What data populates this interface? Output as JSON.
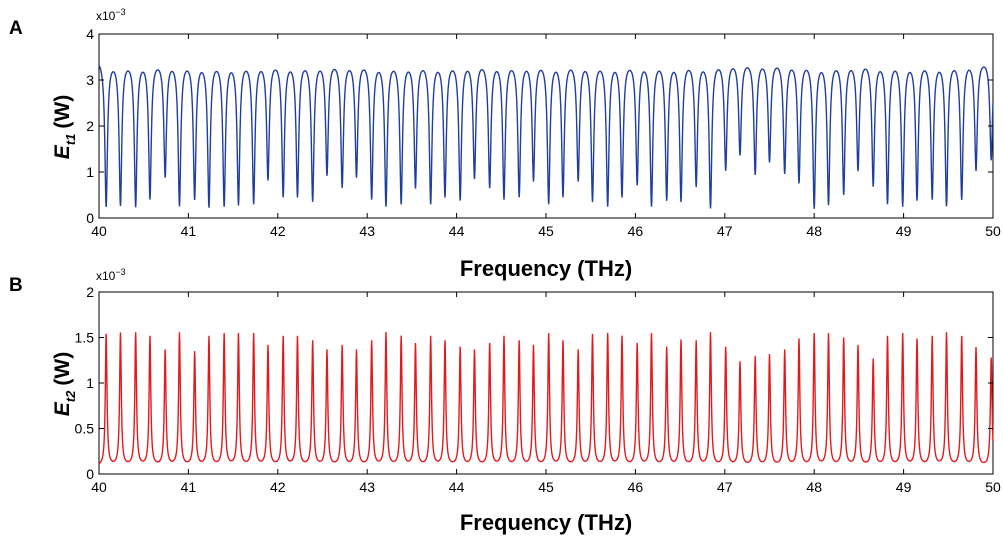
{
  "chart_data": [
    {
      "panel": "A",
      "type": "line",
      "xlabel": "Frequency (THz)",
      "ylabel_main": "E",
      "ylabel_sub": "t1",
      "ylabel_unit": "(W)",
      "scale_exponent_label": "x10",
      "scale_exponent_power": "−3",
      "xlim": [
        40,
        50
      ],
      "ylim": [
        0,
        4
      ],
      "xticks": [
        "40",
        "41",
        "42",
        "43",
        "44",
        "45",
        "46",
        "47",
        "48",
        "49",
        "50"
      ],
      "yticks": [
        "0",
        "1",
        "2",
        "3",
        "4"
      ],
      "series_color": "#1f3f9e",
      "baseline": 3.5,
      "dips": [
        {
          "x": 40.08,
          "y": 0.3
        },
        {
          "x": 40.24,
          "y": 0.35
        },
        {
          "x": 40.41,
          "y": 0.33
        },
        {
          "x": 40.57,
          "y": 0.5
        },
        {
          "x": 40.74,
          "y": 0.98
        },
        {
          "x": 40.9,
          "y": 0.35
        },
        {
          "x": 41.07,
          "y": 0.5
        },
        {
          "x": 41.23,
          "y": 0.33
        },
        {
          "x": 41.4,
          "y": 0.35
        },
        {
          "x": 41.56,
          "y": 0.38
        },
        {
          "x": 41.73,
          "y": 0.4
        },
        {
          "x": 41.89,
          "y": 0.92
        },
        {
          "x": 42.06,
          "y": 0.55
        },
        {
          "x": 42.22,
          "y": 0.55
        },
        {
          "x": 42.39,
          "y": 0.45
        },
        {
          "x": 42.55,
          "y": 1.02
        },
        {
          "x": 42.72,
          "y": 0.75
        },
        {
          "x": 42.88,
          "y": 0.98
        },
        {
          "x": 43.05,
          "y": 0.5
        },
        {
          "x": 43.21,
          "y": 0.35
        },
        {
          "x": 43.38,
          "y": 0.4
        },
        {
          "x": 43.54,
          "y": 0.75
        },
        {
          "x": 43.71,
          "y": 0.4
        },
        {
          "x": 43.87,
          "y": 0.55
        },
        {
          "x": 44.04,
          "y": 0.48
        },
        {
          "x": 44.2,
          "y": 0.95
        },
        {
          "x": 44.37,
          "y": 0.75
        },
        {
          "x": 44.53,
          "y": 0.5
        },
        {
          "x": 44.7,
          "y": 0.55
        },
        {
          "x": 44.86,
          "y": 0.9
        },
        {
          "x": 45.03,
          "y": 0.4
        },
        {
          "x": 45.19,
          "y": 0.55
        },
        {
          "x": 45.36,
          "y": 0.9
        },
        {
          "x": 45.52,
          "y": 0.45
        },
        {
          "x": 45.69,
          "y": 0.35
        },
        {
          "x": 45.85,
          "y": 0.55
        },
        {
          "x": 46.02,
          "y": 0.82
        },
        {
          "x": 46.18,
          "y": 0.35
        },
        {
          "x": 46.35,
          "y": 0.48
        },
        {
          "x": 46.51,
          "y": 0.45
        },
        {
          "x": 46.68,
          "y": 0.78
        },
        {
          "x": 46.84,
          "y": 0.3
        },
        {
          "x": 47.01,
          "y": 1.12
        },
        {
          "x": 47.17,
          "y": 1.45
        },
        {
          "x": 47.34,
          "y": 1.02
        },
        {
          "x": 47.5,
          "y": 1.3
        },
        {
          "x": 47.67,
          "y": 1.05
        },
        {
          "x": 47.83,
          "y": 0.85
        },
        {
          "x": 48.0,
          "y": 0.3
        },
        {
          "x": 48.16,
          "y": 0.38
        },
        {
          "x": 48.33,
          "y": 0.6
        },
        {
          "x": 48.49,
          "y": 1.12
        },
        {
          "x": 48.66,
          "y": 0.78
        },
        {
          "x": 48.82,
          "y": 0.4
        },
        {
          "x": 48.99,
          "y": 0.35
        },
        {
          "x": 49.15,
          "y": 0.48
        },
        {
          "x": 49.32,
          "y": 0.5
        },
        {
          "x": 49.48,
          "y": 0.35
        },
        {
          "x": 49.65,
          "y": 0.48
        },
        {
          "x": 49.81,
          "y": 1.1
        },
        {
          "x": 49.98,
          "y": 1.3
        }
      ]
    },
    {
      "panel": "B",
      "type": "line",
      "xlabel": "Frequency (THz)",
      "ylabel_main": "E",
      "ylabel_sub": "t2",
      "ylabel_unit": "(W)",
      "scale_exponent_label": "x10",
      "scale_exponent_power": "−3",
      "xlim": [
        40,
        50
      ],
      "ylim": [
        0,
        2
      ],
      "xticks": [
        "40",
        "41",
        "42",
        "43",
        "44",
        "45",
        "46",
        "47",
        "48",
        "49",
        "50"
      ],
      "yticks": [
        "0",
        "0.5",
        "1",
        "1.5",
        "2"
      ],
      "series_color": "#e31a1c",
      "baseline": 0.08,
      "peaks": [
        {
          "x": 40.08,
          "y": 1.53
        },
        {
          "x": 40.24,
          "y": 1.54
        },
        {
          "x": 40.41,
          "y": 1.54
        },
        {
          "x": 40.57,
          "y": 1.5
        },
        {
          "x": 40.74,
          "y": 1.35
        },
        {
          "x": 40.9,
          "y": 1.54
        },
        {
          "x": 41.07,
          "y": 1.33
        },
        {
          "x": 41.23,
          "y": 1.5
        },
        {
          "x": 41.4,
          "y": 1.53
        },
        {
          "x": 41.56,
          "y": 1.53
        },
        {
          "x": 41.73,
          "y": 1.53
        },
        {
          "x": 41.89,
          "y": 1.4
        },
        {
          "x": 42.06,
          "y": 1.5
        },
        {
          "x": 42.22,
          "y": 1.5
        },
        {
          "x": 42.39,
          "y": 1.45
        },
        {
          "x": 42.55,
          "y": 1.35
        },
        {
          "x": 42.72,
          "y": 1.4
        },
        {
          "x": 42.88,
          "y": 1.35
        },
        {
          "x": 43.05,
          "y": 1.45
        },
        {
          "x": 43.21,
          "y": 1.54
        },
        {
          "x": 43.38,
          "y": 1.5
        },
        {
          "x": 43.54,
          "y": 1.42
        },
        {
          "x": 43.71,
          "y": 1.5
        },
        {
          "x": 43.87,
          "y": 1.45
        },
        {
          "x": 44.04,
          "y": 1.38
        },
        {
          "x": 44.2,
          "y": 1.35
        },
        {
          "x": 44.37,
          "y": 1.42
        },
        {
          "x": 44.53,
          "y": 1.5
        },
        {
          "x": 44.7,
          "y": 1.45
        },
        {
          "x": 44.86,
          "y": 1.4
        },
        {
          "x": 45.03,
          "y": 1.53
        },
        {
          "x": 45.19,
          "y": 1.45
        },
        {
          "x": 45.36,
          "y": 1.35
        },
        {
          "x": 45.52,
          "y": 1.52
        },
        {
          "x": 45.69,
          "y": 1.53
        },
        {
          "x": 45.85,
          "y": 1.5
        },
        {
          "x": 46.02,
          "y": 1.42
        },
        {
          "x": 46.18,
          "y": 1.53
        },
        {
          "x": 46.35,
          "y": 1.38
        },
        {
          "x": 46.51,
          "y": 1.46
        },
        {
          "x": 46.68,
          "y": 1.45
        },
        {
          "x": 46.84,
          "y": 1.54
        },
        {
          "x": 47.01,
          "y": 1.38
        },
        {
          "x": 47.17,
          "y": 1.22
        },
        {
          "x": 47.34,
          "y": 1.28
        },
        {
          "x": 47.5,
          "y": 1.3
        },
        {
          "x": 47.67,
          "y": 1.35
        },
        {
          "x": 47.83,
          "y": 1.47
        },
        {
          "x": 48.0,
          "y": 1.53
        },
        {
          "x": 48.16,
          "y": 1.53
        },
        {
          "x": 48.33,
          "y": 1.48
        },
        {
          "x": 48.49,
          "y": 1.4
        },
        {
          "x": 48.66,
          "y": 1.25
        },
        {
          "x": 48.82,
          "y": 1.5
        },
        {
          "x": 48.99,
          "y": 1.53
        },
        {
          "x": 49.15,
          "y": 1.47
        },
        {
          "x": 49.32,
          "y": 1.5
        },
        {
          "x": 49.48,
          "y": 1.54
        },
        {
          "x": 49.65,
          "y": 1.5
        },
        {
          "x": 49.81,
          "y": 1.38
        },
        {
          "x": 49.98,
          "y": 1.27
        }
      ]
    }
  ]
}
